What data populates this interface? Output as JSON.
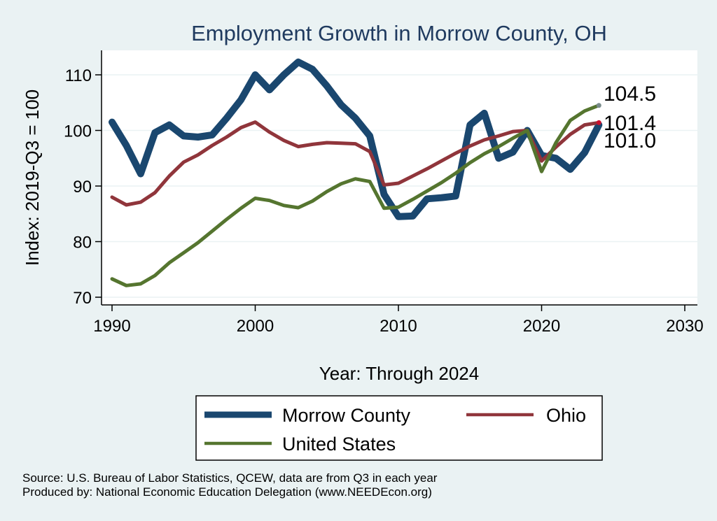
{
  "chart_data": {
    "type": "line",
    "title": "Employment Growth in Morrow County, OH",
    "xlabel": "Year: Through 2024",
    "ylabel": "Index: 2019-Q3 = 100",
    "xlim": [
      1990,
      2030
    ],
    "ylim": [
      68,
      114
    ],
    "xticks": [
      1990,
      2000,
      2010,
      2020,
      2030
    ],
    "yticks": [
      70,
      80,
      90,
      100,
      110
    ],
    "grid": true,
    "legend_position": "bottom",
    "x": [
      1990,
      1991,
      1992,
      1993,
      1994,
      1995,
      1996,
      1997,
      1998,
      1999,
      2000,
      2001,
      2002,
      2003,
      2004,
      2005,
      2006,
      2007,
      2008,
      2009,
      2010,
      2011,
      2012,
      2013,
      2014,
      2015,
      2016,
      2017,
      2018,
      2019,
      2020,
      2021,
      2022,
      2023,
      2024
    ],
    "series": [
      {
        "name": "Morrow  County",
        "color": "#1a476f",
        "values": [
          101.5,
          97.3,
          92.2,
          99.6,
          101.0,
          99.0,
          98.8,
          99.2,
          102.2,
          105.5,
          110.0,
          107.3,
          110.0,
          112.3,
          111.0,
          108.0,
          104.6,
          102.2,
          99.0,
          88.5,
          84.5,
          84.6,
          87.7,
          87.9,
          88.2,
          101.0,
          103.1,
          95.0,
          96.1,
          100.0,
          95.5,
          95.0,
          93.0,
          96.0,
          101.0
        ],
        "end_value": "101.0"
      },
      {
        "name": "Ohio",
        "color": "#90353b",
        "values": [
          88.0,
          86.6,
          87.1,
          88.8,
          91.8,
          94.3,
          95.6,
          97.3,
          98.8,
          100.5,
          101.5,
          99.7,
          98.2,
          97.1,
          97.5,
          97.8,
          97.7,
          97.6,
          96.2,
          90.2,
          90.5,
          91.8,
          93.1,
          94.5,
          95.9,
          97.2,
          98.3,
          99.0,
          99.8,
          100.0,
          94.5,
          97.0,
          99.3,
          101.0,
          101.4
        ],
        "end_value": "101.4"
      },
      {
        "name": "United States",
        "color": "#55752f",
        "values": [
          73.3,
          72.1,
          72.4,
          73.9,
          76.2,
          78.0,
          79.8,
          81.9,
          84.0,
          86.0,
          87.8,
          87.4,
          86.5,
          86.1,
          87.3,
          89.0,
          90.4,
          91.3,
          90.8,
          86.0,
          86.2,
          87.6,
          89.1,
          90.6,
          92.3,
          94.2,
          95.8,
          97.1,
          98.6,
          100.0,
          92.6,
          97.8,
          101.8,
          103.5,
          104.5
        ],
        "end_value": "104.5"
      }
    ],
    "legend": [
      "Morrow  County",
      "Ohio",
      "United States"
    ]
  },
  "source_lines": [
    "Source: U.S. Bureau of Labor Statistics, QCEW, data are from Q3 in each year",
    "Produced by: National Economic Education Delegation (www.NEEDEcon.org)"
  ],
  "colors": {
    "background": "#eaf2f3",
    "plot_area": "#ffffff",
    "grid": "#eaf2f3",
    "title": "#1f3a5f"
  }
}
